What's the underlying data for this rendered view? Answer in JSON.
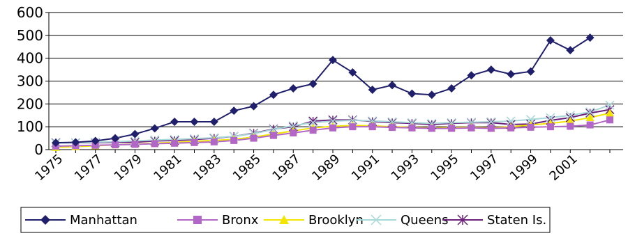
{
  "chart_data": {
    "type": "line",
    "title": "",
    "xlabel": "",
    "ylabel": "",
    "ylim": [
      0,
      600
    ],
    "yticks": [
      "0",
      "100",
      "200",
      "300",
      "400",
      "500",
      "600"
    ],
    "xtick_labels": [
      "1975",
      "1977",
      "1979",
      "1981",
      "1983",
      "1985",
      "1987",
      "1989",
      "1991",
      "1993",
      "1995",
      "1997",
      "1999",
      "2001"
    ],
    "x": [
      1975,
      1976,
      1977,
      1978,
      1979,
      1980,
      1981,
      1982,
      1983,
      1984,
      1985,
      1986,
      1987,
      1988,
      1989,
      1990,
      1991,
      1992,
      1993,
      1994,
      1995,
      1996,
      1997,
      1998,
      1999,
      2000,
      2001,
      2002,
      2003
    ],
    "grid": true,
    "legend_position": "bottom",
    "series": [
      {
        "name": "Manhattan",
        "color": "#1f1f6b",
        "marker": "diamond",
        "values": [
          30,
          32,
          38,
          50,
          68,
          93,
          122,
          122,
          122,
          170,
          190,
          240,
          268,
          288,
          392,
          338,
          262,
          282,
          245,
          240,
          268,
          325,
          350,
          330,
          342,
          478,
          435,
          490,
          null
        ]
      },
      {
        "name": "Bronx",
        "color": "#b266c8",
        "marker": "square",
        "values": [
          15,
          17,
          19,
          21,
          23,
          26,
          28,
          31,
          34,
          40,
          50,
          62,
          73,
          85,
          95,
          100,
          100,
          97,
          95,
          93,
          93,
          95,
          93,
          95,
          98,
          100,
          102,
          108,
          130
        ]
      },
      {
        "name": "Brooklyn",
        "color": "#f2e600",
        "marker": "triangle",
        "values": [
          10,
          13,
          17,
          21,
          24,
          28,
          32,
          36,
          40,
          45,
          55,
          68,
          82,
          95,
          102,
          106,
          104,
          100,
          98,
          95,
          97,
          98,
          95,
          100,
          108,
          115,
          125,
          140,
          160
        ]
      },
      {
        "name": "Queens",
        "color": "#a8d8d8",
        "marker": "x",
        "values": [
          28,
          30,
          32,
          35,
          38,
          42,
          45,
          48,
          52,
          58,
          70,
          88,
          105,
          118,
          125,
          128,
          126,
          122,
          118,
          115,
          118,
          120,
          122,
          125,
          132,
          140,
          150,
          165,
          195
        ]
      },
      {
        "name": "Staten Is.",
        "color": "#6b1f7a",
        "marker": "asterisk",
        "values": [
          30,
          30,
          30,
          32,
          32,
          38,
          40,
          44,
          50,
          58,
          72,
          90,
          100,
          125,
          130,
          130,
          123,
          118,
          115,
          110,
          115,
          118,
          118,
          110,
          112,
          128,
          140,
          160,
          175
        ]
      }
    ]
  }
}
